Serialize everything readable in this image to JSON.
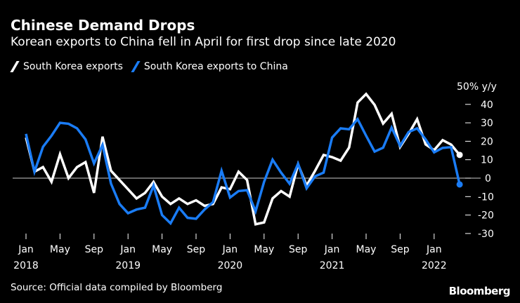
{
  "header": {
    "title": "Chinese Demand Drops",
    "subtitle": "Korean exports to China fell in April for first drop since late 2020"
  },
  "footer": {
    "source": "Source: Official data compiled by Bloomberg",
    "logo": "Bloomberg"
  },
  "chart_data": {
    "type": "line",
    "title": "Chinese Demand Drops",
    "ylabel": "50% y/y",
    "ylim": [
      -30,
      50
    ],
    "yticks": [
      "40",
      "30",
      "20",
      "10",
      "0",
      "-10",
      "-20",
      "-30"
    ],
    "ytick_values": [
      40,
      30,
      20,
      10,
      0,
      -10,
      -20,
      -30
    ],
    "xticks": [
      {
        "month_index": 0,
        "label": "Jan",
        "year": "2018"
      },
      {
        "month_index": 4,
        "label": "May",
        "year": ""
      },
      {
        "month_index": 8,
        "label": "Sep",
        "year": ""
      },
      {
        "month_index": 12,
        "label": "Jan",
        "year": "2019"
      },
      {
        "month_index": 16,
        "label": "May",
        "year": ""
      },
      {
        "month_index": 20,
        "label": "Sep",
        "year": ""
      },
      {
        "month_index": 24,
        "label": "Jan",
        "year": "2020"
      },
      {
        "month_index": 28,
        "label": "May",
        "year": ""
      },
      {
        "month_index": 32,
        "label": "Sep",
        "year": ""
      },
      {
        "month_index": 36,
        "label": "Jan",
        "year": "2021"
      },
      {
        "month_index": 40,
        "label": "May",
        "year": ""
      },
      {
        "month_index": 44,
        "label": "Sep",
        "year": ""
      },
      {
        "month_index": 48,
        "label": "Jan",
        "year": "2022"
      }
    ],
    "x_start": "2018-01",
    "x_end": "2022-04",
    "legend_position": "top-left",
    "series": [
      {
        "name": "South Korea exports",
        "color": "#ffffff",
        "values": [
          22,
          3.5,
          6,
          -2,
          13,
          0,
          6,
          8.7,
          -8,
          22.5,
          4,
          -1,
          -6,
          -11,
          -8,
          -2,
          -10,
          -14,
          -11,
          -14,
          -12,
          -15,
          -14,
          -5,
          -6,
          3.5,
          -1,
          -25,
          -24,
          -11,
          -7,
          -10,
          7.5,
          -4,
          4,
          12.6,
          11.4,
          9.5,
          16.6,
          41,
          45.6,
          39.7,
          29.6,
          34.9,
          16.9,
          24,
          32,
          18.3,
          15.2,
          20.6,
          18.2,
          12.6
        ]
      },
      {
        "name": "South Korea exports to China",
        "color": "#1a7cf5",
        "values": [
          24,
          3.5,
          17,
          23,
          30,
          29.5,
          27,
          21,
          8,
          18,
          -3,
          -14,
          -19,
          -17,
          -16,
          -4,
          -20,
          -24.5,
          -16,
          -21.5,
          -22,
          -17,
          -13,
          4,
          -10.5,
          -7,
          -6.5,
          -18,
          -2,
          10,
          3,
          -3,
          7.8,
          -5.5,
          1,
          3,
          22,
          27,
          26.5,
          32,
          23,
          14.4,
          16.5,
          27.4,
          17.5,
          25,
          27,
          21,
          14,
          16.4,
          16.8,
          -3.4
        ]
      }
    ]
  }
}
